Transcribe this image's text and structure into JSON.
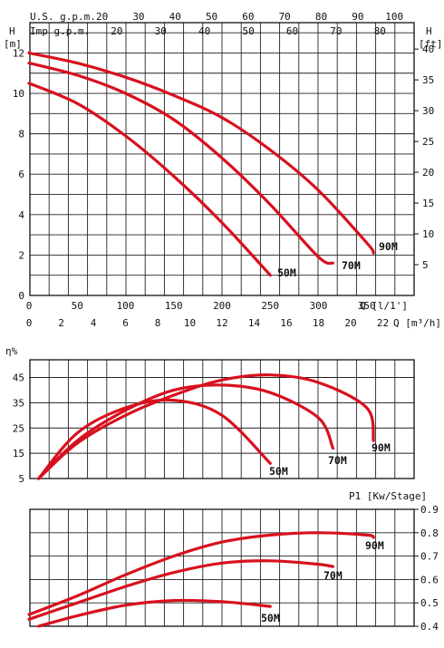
{
  "chart_data": [
    {
      "type": "line",
      "top_axis_1": {
        "label": "U.S. g.p.m.",
        "ticks": [
          "20",
          "30",
          "40",
          "50",
          "60",
          "70",
          "80",
          "90",
          "100"
        ],
        "ticks_num": [
          20,
          30,
          40,
          50,
          60,
          70,
          80,
          90,
          100
        ]
      },
      "top_axis_2": {
        "label": "Imp g.p.m.",
        "ticks": [
          "20",
          "30",
          "40",
          "50",
          "60",
          "70",
          "80"
        ],
        "ticks_num": [
          20,
          30,
          40,
          50,
          60,
          70,
          80
        ]
      },
      "ylabel_left": "H\n[m]",
      "ylabel_left_h": "H",
      "ylabel_left_unit": "[m]",
      "ylabel_right_h": "H",
      "ylabel_right_unit": "[ft]",
      "xlabel": "Q [l/1']",
      "xlabel2": "Q [m³/h]",
      "y_ticks": [
        "0",
        "2",
        "4",
        "6",
        "8",
        "10",
        "12"
      ],
      "y_ticks_num": [
        0,
        2,
        4,
        6,
        8,
        10,
        12
      ],
      "y_right_ticks": [
        "5",
        "10",
        "15",
        "20",
        "25",
        "30",
        "35",
        "40"
      ],
      "y_right_ticks_num": [
        5,
        10,
        15,
        20,
        25,
        30,
        35,
        40
      ],
      "x_ticks": [
        "0",
        "50",
        "100",
        "150",
        "200",
        "250",
        "300",
        "350"
      ],
      "x_ticks_num": [
        0,
        50,
        100,
        150,
        200,
        250,
        300,
        350
      ],
      "x2_ticks": [
        "0",
        "2",
        "4",
        "6",
        "8",
        "10",
        "12",
        "14",
        "16",
        "18",
        "20",
        "22"
      ],
      "x2_ticks_num": [
        0,
        2,
        4,
        6,
        8,
        10,
        12,
        14,
        16,
        18,
        20,
        22
      ],
      "xlim": [
        0,
        400
      ],
      "ylim": [
        0,
        13.5
      ],
      "series": [
        {
          "name": "50M",
          "x": [
            0,
            50,
            100,
            150,
            200,
            250
          ],
          "y": [
            10.5,
            9.5,
            7.9,
            5.9,
            3.6,
            1.0
          ]
        },
        {
          "name": "70M",
          "x": [
            0,
            50,
            100,
            150,
            200,
            250,
            300,
            315
          ],
          "y": [
            11.5,
            10.9,
            10.0,
            8.7,
            6.8,
            4.5,
            1.9,
            1.6
          ]
        },
        {
          "name": "90M",
          "x": [
            0,
            50,
            100,
            150,
            200,
            250,
            300,
            350,
            357
          ],
          "y": [
            12.0,
            11.5,
            10.8,
            9.9,
            8.8,
            7.2,
            5.2,
            2.6,
            2.1
          ]
        }
      ]
    },
    {
      "type": "line",
      "ylabel": "η%",
      "y_ticks": [
        "5",
        "15",
        "25",
        "35",
        "45"
      ],
      "y_ticks_num": [
        5,
        15,
        25,
        35,
        45
      ],
      "xlim": [
        0,
        400
      ],
      "ylim": [
        5,
        52
      ],
      "series": [
        {
          "name": "50M",
          "x": [
            10,
            50,
            100,
            150,
            200,
            250
          ],
          "y": [
            5,
            23,
            33,
            36,
            30,
            11
          ]
        },
        {
          "name": "70M",
          "x": [
            10,
            50,
            100,
            150,
            200,
            250,
            300,
            315
          ],
          "y": [
            5,
            20,
            32,
            40,
            42,
            39,
            29,
            17
          ]
        },
        {
          "name": "90M",
          "x": [
            10,
            50,
            100,
            150,
            200,
            250,
            300,
            350,
            357
          ],
          "y": [
            5,
            19,
            30,
            38,
            44,
            46,
            43,
            33,
            20
          ]
        }
      ]
    },
    {
      "type": "line",
      "ylabel": "P1 [Kw/Stage]",
      "y_ticks": [
        "0.4",
        "0.5",
        "0.6",
        "0.7",
        "0.8",
        "0.9"
      ],
      "y_ticks_num": [
        0.4,
        0.5,
        0.6,
        0.7,
        0.8,
        0.9
      ],
      "xlim": [
        0,
        400
      ],
      "ylim": [
        0.4,
        0.9
      ],
      "series": [
        {
          "name": "50M",
          "x": [
            10,
            50,
            100,
            150,
            200,
            250
          ],
          "y": [
            0.4,
            0.445,
            0.49,
            0.51,
            0.505,
            0.485
          ]
        },
        {
          "name": "70M",
          "x": [
            0,
            50,
            100,
            150,
            200,
            250,
            300,
            315
          ],
          "y": [
            0.43,
            0.5,
            0.57,
            0.63,
            0.67,
            0.68,
            0.665,
            0.655
          ]
        },
        {
          "name": "90M",
          "x": [
            0,
            50,
            100,
            150,
            200,
            250,
            300,
            350,
            357
          ],
          "y": [
            0.45,
            0.53,
            0.62,
            0.7,
            0.76,
            0.79,
            0.8,
            0.79,
            0.78
          ]
        }
      ]
    }
  ]
}
